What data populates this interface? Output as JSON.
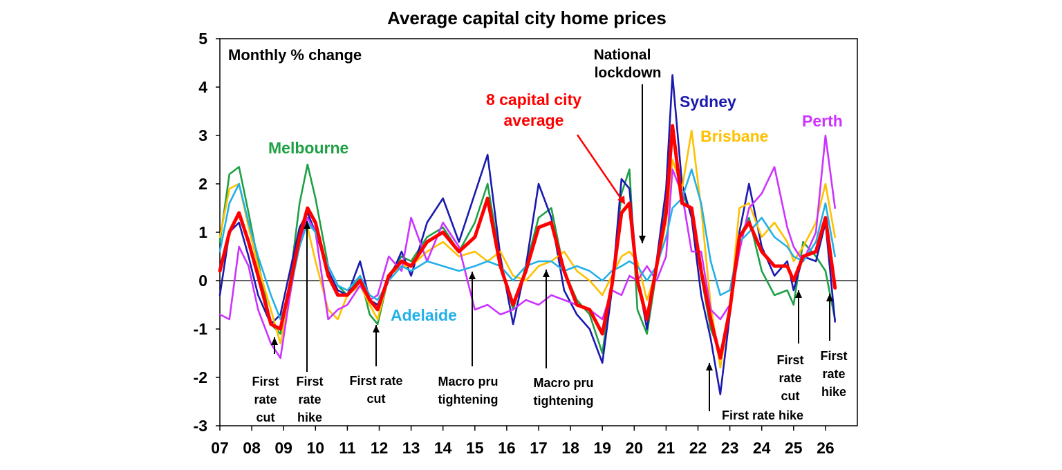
{
  "chart_data": {
    "type": "line",
    "title": "Average capital city home prices",
    "ylabel": "Monthly % change",
    "xlabel": "",
    "ylim": [
      -3,
      5
    ],
    "xlim": [
      2007.0,
      2027.0
    ],
    "yticks": [
      "5",
      "4",
      "3",
      "2",
      "1",
      "0",
      "-1",
      "-2",
      "-3"
    ],
    "xticks": [
      "07",
      "08",
      "09",
      "10",
      "11",
      "12",
      "13",
      "14",
      "15",
      "16",
      "17",
      "18",
      "19",
      "20",
      "21",
      "22",
      "23",
      "24",
      "25",
      "26"
    ],
    "legend": "inline labels",
    "grid": false,
    "series": [
      {
        "name": "Melbourne",
        "color": "#1FA045",
        "x": [
          2007.0,
          2007.3,
          2007.6,
          2007.9,
          2008.2,
          2008.6,
          2008.9,
          2009.2,
          2009.5,
          2009.75,
          2010.0,
          2010.4,
          2010.7,
          2011.0,
          2011.4,
          2011.7,
          2011.95,
          2012.3,
          2012.7,
          2013.0,
          2013.5,
          2014.0,
          2014.5,
          2015.0,
          2015.4,
          2015.8,
          2016.2,
          2016.6,
          2017.0,
          2017.4,
          2017.8,
          2018.2,
          2018.6,
          2019.0,
          2019.3,
          2019.6,
          2019.85,
          2020.1,
          2020.4,
          2020.7,
          2021.0,
          2021.2,
          2021.5,
          2021.8,
          2022.1,
          2022.4,
          2022.7,
          2023.0,
          2023.3,
          2023.6,
          2024.0,
          2024.4,
          2024.8,
          2025.0,
          2025.3,
          2025.7,
          2026.0,
          2026.3
        ],
        "y": [
          0.8,
          2.2,
          2.35,
          1.4,
          0.4,
          -0.9,
          -1.1,
          0.0,
          1.6,
          2.4,
          1.7,
          0.3,
          -0.1,
          -0.3,
          0.1,
          -0.7,
          -0.9,
          0.1,
          0.5,
          0.4,
          0.9,
          1.1,
          0.6,
          1.2,
          2.0,
          0.4,
          -0.6,
          0.3,
          1.3,
          1.5,
          0.2,
          -0.4,
          -0.7,
          -1.5,
          -0.1,
          1.8,
          2.3,
          -0.6,
          -1.1,
          0.2,
          1.6,
          3.0,
          1.8,
          1.4,
          0.1,
          -1.0,
          -1.5,
          -0.7,
          0.9,
          1.3,
          0.2,
          -0.3,
          -0.2,
          -0.5,
          0.8,
          0.5,
          0.2,
          -0.8
        ]
      },
      {
        "name": "Sydney",
        "color": "#1A1AAF",
        "x": [
          2007.0,
          2007.3,
          2007.6,
          2007.9,
          2008.2,
          2008.6,
          2008.9,
          2009.2,
          2009.5,
          2009.75,
          2010.0,
          2010.4,
          2010.7,
          2011.0,
          2011.4,
          2011.7,
          2011.95,
          2012.3,
          2012.7,
          2013.0,
          2013.5,
          2014.0,
          2014.5,
          2015.0,
          2015.4,
          2015.8,
          2016.2,
          2016.6,
          2017.0,
          2017.4,
          2017.8,
          2018.2,
          2018.6,
          2019.0,
          2019.3,
          2019.6,
          2019.85,
          2020.1,
          2020.4,
          2020.7,
          2021.0,
          2021.2,
          2021.5,
          2021.8,
          2022.1,
          2022.4,
          2022.7,
          2023.0,
          2023.3,
          2023.6,
          2024.0,
          2024.4,
          2024.8,
          2025.0,
          2025.3,
          2025.7,
          2026.0,
          2026.3
        ],
        "y": [
          -0.3,
          1.0,
          1.2,
          0.5,
          -0.3,
          -0.9,
          -0.7,
          0.2,
          1.1,
          1.4,
          1.0,
          0.2,
          -0.2,
          -0.3,
          0.4,
          -0.4,
          -0.5,
          0.0,
          0.6,
          0.1,
          1.2,
          1.7,
          0.8,
          1.8,
          2.6,
          0.5,
          -0.9,
          0.3,
          2.0,
          1.3,
          -0.2,
          -0.7,
          -1.0,
          -1.7,
          -0.2,
          2.1,
          1.9,
          0.1,
          -1.0,
          0.4,
          1.9,
          4.25,
          2.0,
          1.3,
          -0.3,
          -1.2,
          -2.35,
          -0.7,
          1.0,
          2.0,
          0.7,
          0.1,
          0.4,
          -0.2,
          0.5,
          0.4,
          1.2,
          -0.85
        ]
      },
      {
        "name": "Brisbane",
        "color": "#FFC000",
        "x": [
          2007.0,
          2007.3,
          2007.6,
          2007.9,
          2008.2,
          2008.6,
          2008.9,
          2009.2,
          2009.5,
          2009.75,
          2010.0,
          2010.4,
          2010.7,
          2011.0,
          2011.4,
          2011.7,
          2011.95,
          2012.3,
          2012.7,
          2013.0,
          2013.5,
          2014.0,
          2014.5,
          2015.0,
          2015.4,
          2015.8,
          2016.2,
          2016.6,
          2017.0,
          2017.4,
          2017.8,
          2018.2,
          2018.6,
          2019.0,
          2019.3,
          2019.6,
          2019.85,
          2020.1,
          2020.4,
          2020.7,
          2021.0,
          2021.2,
          2021.5,
          2021.8,
          2022.1,
          2022.4,
          2022.7,
          2023.0,
          2023.3,
          2023.6,
          2024.0,
          2024.4,
          2024.8,
          2025.0,
          2025.3,
          2025.7,
          2026.0,
          2026.3
        ],
        "y": [
          0.9,
          1.9,
          2.0,
          1.1,
          0.3,
          -0.6,
          -1.3,
          -0.3,
          0.9,
          1.1,
          0.4,
          -0.6,
          -0.8,
          -0.3,
          -0.1,
          -0.5,
          -0.8,
          0.1,
          0.3,
          0.3,
          0.6,
          0.8,
          0.5,
          0.6,
          0.4,
          0.6,
          0.1,
          0.0,
          0.3,
          0.4,
          0.6,
          0.2,
          0.0,
          -0.3,
          0.1,
          0.5,
          0.6,
          0.4,
          -0.4,
          0.2,
          1.2,
          2.5,
          1.9,
          3.1,
          1.5,
          -0.5,
          -1.8,
          -0.6,
          1.5,
          1.6,
          0.9,
          1.2,
          0.8,
          0.4,
          0.7,
          1.2,
          2.0,
          0.9
        ]
      },
      {
        "name": "Perth",
        "color": "#CC33FF",
        "x": [
          2007.0,
          2007.3,
          2007.6,
          2007.9,
          2008.2,
          2008.6,
          2008.9,
          2009.2,
          2009.5,
          2009.75,
          2010.0,
          2010.4,
          2010.7,
          2011.0,
          2011.4,
          2011.7,
          2011.95,
          2012.3,
          2012.7,
          2013.0,
          2013.5,
          2014.0,
          2014.5,
          2015.0,
          2015.4,
          2015.8,
          2016.2,
          2016.6,
          2017.0,
          2017.4,
          2017.8,
          2018.2,
          2018.6,
          2019.0,
          2019.3,
          2019.6,
          2019.85,
          2020.1,
          2020.4,
          2020.7,
          2021.0,
          2021.2,
          2021.5,
          2021.8,
          2022.1,
          2022.4,
          2022.7,
          2023.0,
          2023.3,
          2023.6,
          2024.0,
          2024.4,
          2024.8,
          2025.0,
          2025.3,
          2025.7,
          2026.0,
          2026.3
        ],
        "y": [
          -0.7,
          -0.8,
          0.7,
          0.3,
          -0.6,
          -1.3,
          -1.6,
          -0.3,
          0.8,
          1.3,
          1.0,
          -0.8,
          -0.6,
          -0.5,
          -0.1,
          -0.4,
          -0.3,
          0.5,
          0.2,
          1.3,
          0.4,
          1.2,
          0.7,
          -0.6,
          -0.5,
          -0.7,
          -0.6,
          -0.4,
          -0.5,
          -0.3,
          -0.4,
          -0.5,
          -0.6,
          -0.8,
          -0.2,
          -0.3,
          0.1,
          0.0,
          0.3,
          0.0,
          0.5,
          2.3,
          1.8,
          0.6,
          0.6,
          -0.6,
          -0.8,
          -0.5,
          0.6,
          1.5,
          1.8,
          2.35,
          1.1,
          0.7,
          0.4,
          1.0,
          3.0,
          1.5
        ]
      },
      {
        "name": "Adelaide",
        "color": "#23B0E8",
        "x": [
          2007.0,
          2007.3,
          2007.6,
          2007.9,
          2008.2,
          2008.6,
          2008.9,
          2009.2,
          2009.5,
          2009.75,
          2010.0,
          2010.4,
          2010.7,
          2011.0,
          2011.4,
          2011.7,
          2011.95,
          2012.3,
          2012.7,
          2013.0,
          2013.5,
          2014.0,
          2014.5,
          2015.0,
          2015.4,
          2015.8,
          2016.2,
          2016.6,
          2017.0,
          2017.4,
          2017.8,
          2018.2,
          2018.6,
          2019.0,
          2019.3,
          2019.6,
          2019.85,
          2020.1,
          2020.4,
          2020.7,
          2021.0,
          2021.2,
          2021.5,
          2021.8,
          2022.1,
          2022.4,
          2022.7,
          2023.0,
          2023.3,
          2023.6,
          2024.0,
          2024.4,
          2024.8,
          2025.0,
          2025.3,
          2025.7,
          2026.0,
          2026.3
        ],
        "y": [
          0.6,
          1.6,
          2.0,
          1.2,
          0.5,
          -0.3,
          -0.8,
          -0.2,
          0.7,
          1.2,
          1.0,
          0.3,
          -0.1,
          -0.2,
          0.1,
          -0.3,
          -0.4,
          0.0,
          0.3,
          0.2,
          0.4,
          0.3,
          0.2,
          0.3,
          0.4,
          0.3,
          0.0,
          0.3,
          0.4,
          0.4,
          0.2,
          0.3,
          0.2,
          0.0,
          0.2,
          0.3,
          0.4,
          0.3,
          0.0,
          0.3,
          0.9,
          1.5,
          1.7,
          2.3,
          1.6,
          0.4,
          -0.3,
          -0.2,
          0.8,
          1.0,
          1.3,
          0.9,
          0.7,
          0.5,
          0.4,
          0.8,
          1.6,
          0.5
        ]
      },
      {
        "name": "8 capital city average",
        "color": "#FF0000",
        "x": [
          2007.0,
          2007.3,
          2007.6,
          2007.9,
          2008.2,
          2008.6,
          2008.9,
          2009.2,
          2009.5,
          2009.75,
          2010.0,
          2010.4,
          2010.7,
          2011.0,
          2011.4,
          2011.7,
          2011.95,
          2012.3,
          2012.7,
          2013.0,
          2013.5,
          2014.0,
          2014.5,
          2015.0,
          2015.4,
          2015.8,
          2016.2,
          2016.6,
          2017.0,
          2017.4,
          2017.8,
          2018.2,
          2018.6,
          2019.0,
          2019.3,
          2019.6,
          2019.85,
          2020.1,
          2020.4,
          2020.7,
          2021.0,
          2021.2,
          2021.5,
          2021.8,
          2022.1,
          2022.4,
          2022.7,
          2023.0,
          2023.3,
          2023.6,
          2024.0,
          2024.4,
          2024.8,
          2025.0,
          2025.3,
          2025.7,
          2026.0,
          2026.3
        ],
        "y": [
          0.2,
          1.0,
          1.4,
          0.8,
          0.1,
          -0.9,
          -1.0,
          -0.1,
          0.9,
          1.5,
          1.2,
          0.1,
          -0.3,
          -0.3,
          0.0,
          -0.4,
          -0.6,
          0.1,
          0.4,
          0.3,
          0.8,
          1.0,
          0.6,
          0.9,
          1.7,
          0.3,
          -0.5,
          0.2,
          1.1,
          1.2,
          0.2,
          -0.5,
          -0.6,
          -1.1,
          -0.1,
          1.4,
          1.6,
          0.0,
          -0.8,
          0.3,
          1.4,
          3.2,
          1.6,
          1.5,
          0.2,
          -0.8,
          -1.6,
          -0.6,
          0.9,
          1.2,
          0.6,
          0.3,
          0.3,
          0.0,
          0.5,
          0.6,
          1.3,
          -0.15
        ]
      }
    ],
    "labels": {
      "melbourne": "Melbourne",
      "sydney": "Sydney",
      "brisbane": "Brisbane",
      "perth": "Perth",
      "adelaide": "Adelaide",
      "average_line1": "8 capital city",
      "average_line2": "average",
      "lockdown_line1": "National",
      "lockdown_line2": "lockdown"
    },
    "annotations": [
      {
        "key": "cut08",
        "lines": [
          "First",
          "rate",
          "cut"
        ]
      },
      {
        "key": "hike09",
        "lines": [
          "First",
          "rate",
          "hike"
        ]
      },
      {
        "key": "cut11",
        "lines": [
          "First rate",
          "cut"
        ]
      },
      {
        "key": "macro14",
        "lines": [
          "Macro pru",
          "tightening"
        ]
      },
      {
        "key": "macro17",
        "lines": [
          "Macro pru",
          "tightening"
        ]
      },
      {
        "key": "hike22",
        "lines": [
          "First rate hike"
        ]
      },
      {
        "key": "cut25",
        "lines": [
          "First",
          "rate",
          "cut"
        ]
      },
      {
        "key": "hike26",
        "lines": [
          "First",
          "rate",
          "hike"
        ]
      }
    ]
  }
}
